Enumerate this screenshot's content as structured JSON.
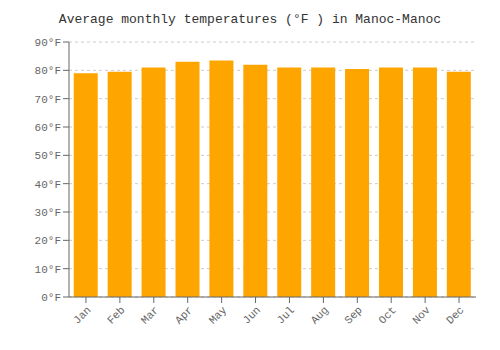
{
  "chart_data": {
    "type": "bar",
    "title": "Average monthly temperatures (°F ) in Manoc-Manoc",
    "categories": [
      "Jan",
      "Feb",
      "Mar",
      "Apr",
      "May",
      "Jun",
      "Jul",
      "Aug",
      "Sep",
      "Oct",
      "Nov",
      "Dec"
    ],
    "values": [
      79,
      79.5,
      81,
      83,
      83.5,
      82,
      81,
      81,
      80.5,
      81,
      81,
      79.5
    ],
    "color": "#FFA500",
    "ylim": [
      0,
      90
    ],
    "yticks": [
      {
        "value": 0,
        "label": "0°F"
      },
      {
        "value": 10,
        "label": "10°F"
      },
      {
        "value": 20,
        "label": "20°F"
      },
      {
        "value": 30,
        "label": "30°F"
      },
      {
        "value": 40,
        "label": "40°F"
      },
      {
        "value": 50,
        "label": "50°F"
      },
      {
        "value": 60,
        "label": "60°F"
      },
      {
        "value": 70,
        "label": "70°F"
      },
      {
        "value": 80,
        "label": "80°F"
      },
      {
        "value": 90,
        "label": "90°F"
      }
    ],
    "grid": true
  }
}
